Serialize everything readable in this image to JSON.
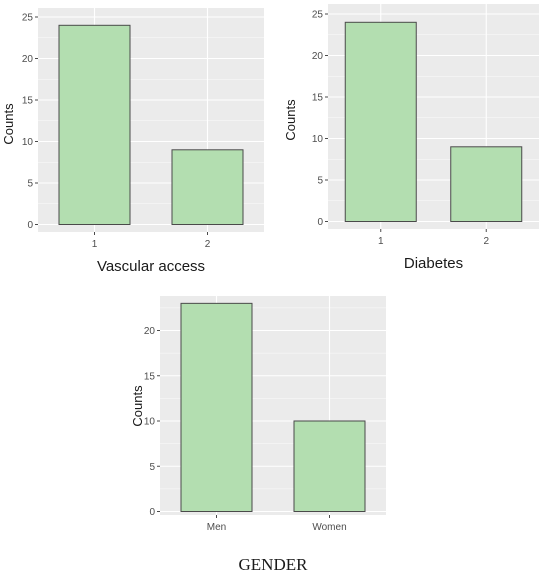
{
  "chart_data": [
    {
      "type": "bar",
      "categories": [
        "1",
        "2"
      ],
      "values": [
        24,
        9
      ],
      "xlabel": "Vascular access",
      "ylabel": "Counts",
      "ylim": [
        0,
        25
      ],
      "yticks": [
        0,
        5,
        10,
        15,
        20,
        25
      ],
      "grid": true,
      "colors": {
        "bar_fill": "#b3deb0",
        "bar_stroke": "#4a4a4a",
        "panel": "#ebebeb"
      }
    },
    {
      "type": "bar",
      "categories": [
        "1",
        "2"
      ],
      "values": [
        24,
        9
      ],
      "xlabel": "Diabetes",
      "ylabel": "Counts",
      "ylim": [
        0,
        25
      ],
      "yticks": [
        0,
        5,
        10,
        15,
        20,
        25
      ],
      "grid": true,
      "colors": {
        "bar_fill": "#b3deb0",
        "bar_stroke": "#4a4a4a",
        "panel": "#ebebeb"
      }
    },
    {
      "type": "bar",
      "categories": [
        "Men",
        "Women"
      ],
      "values": [
        23,
        10
      ],
      "xlabel": "GENDER",
      "ylabel": "Counts",
      "ylim": [
        0,
        24
      ],
      "yticks": [
        0,
        5,
        10,
        15,
        20
      ],
      "grid": true,
      "colors": {
        "bar_fill": "#b3deb0",
        "bar_stroke": "#4a4a4a",
        "panel": "#ebebeb"
      }
    }
  ]
}
